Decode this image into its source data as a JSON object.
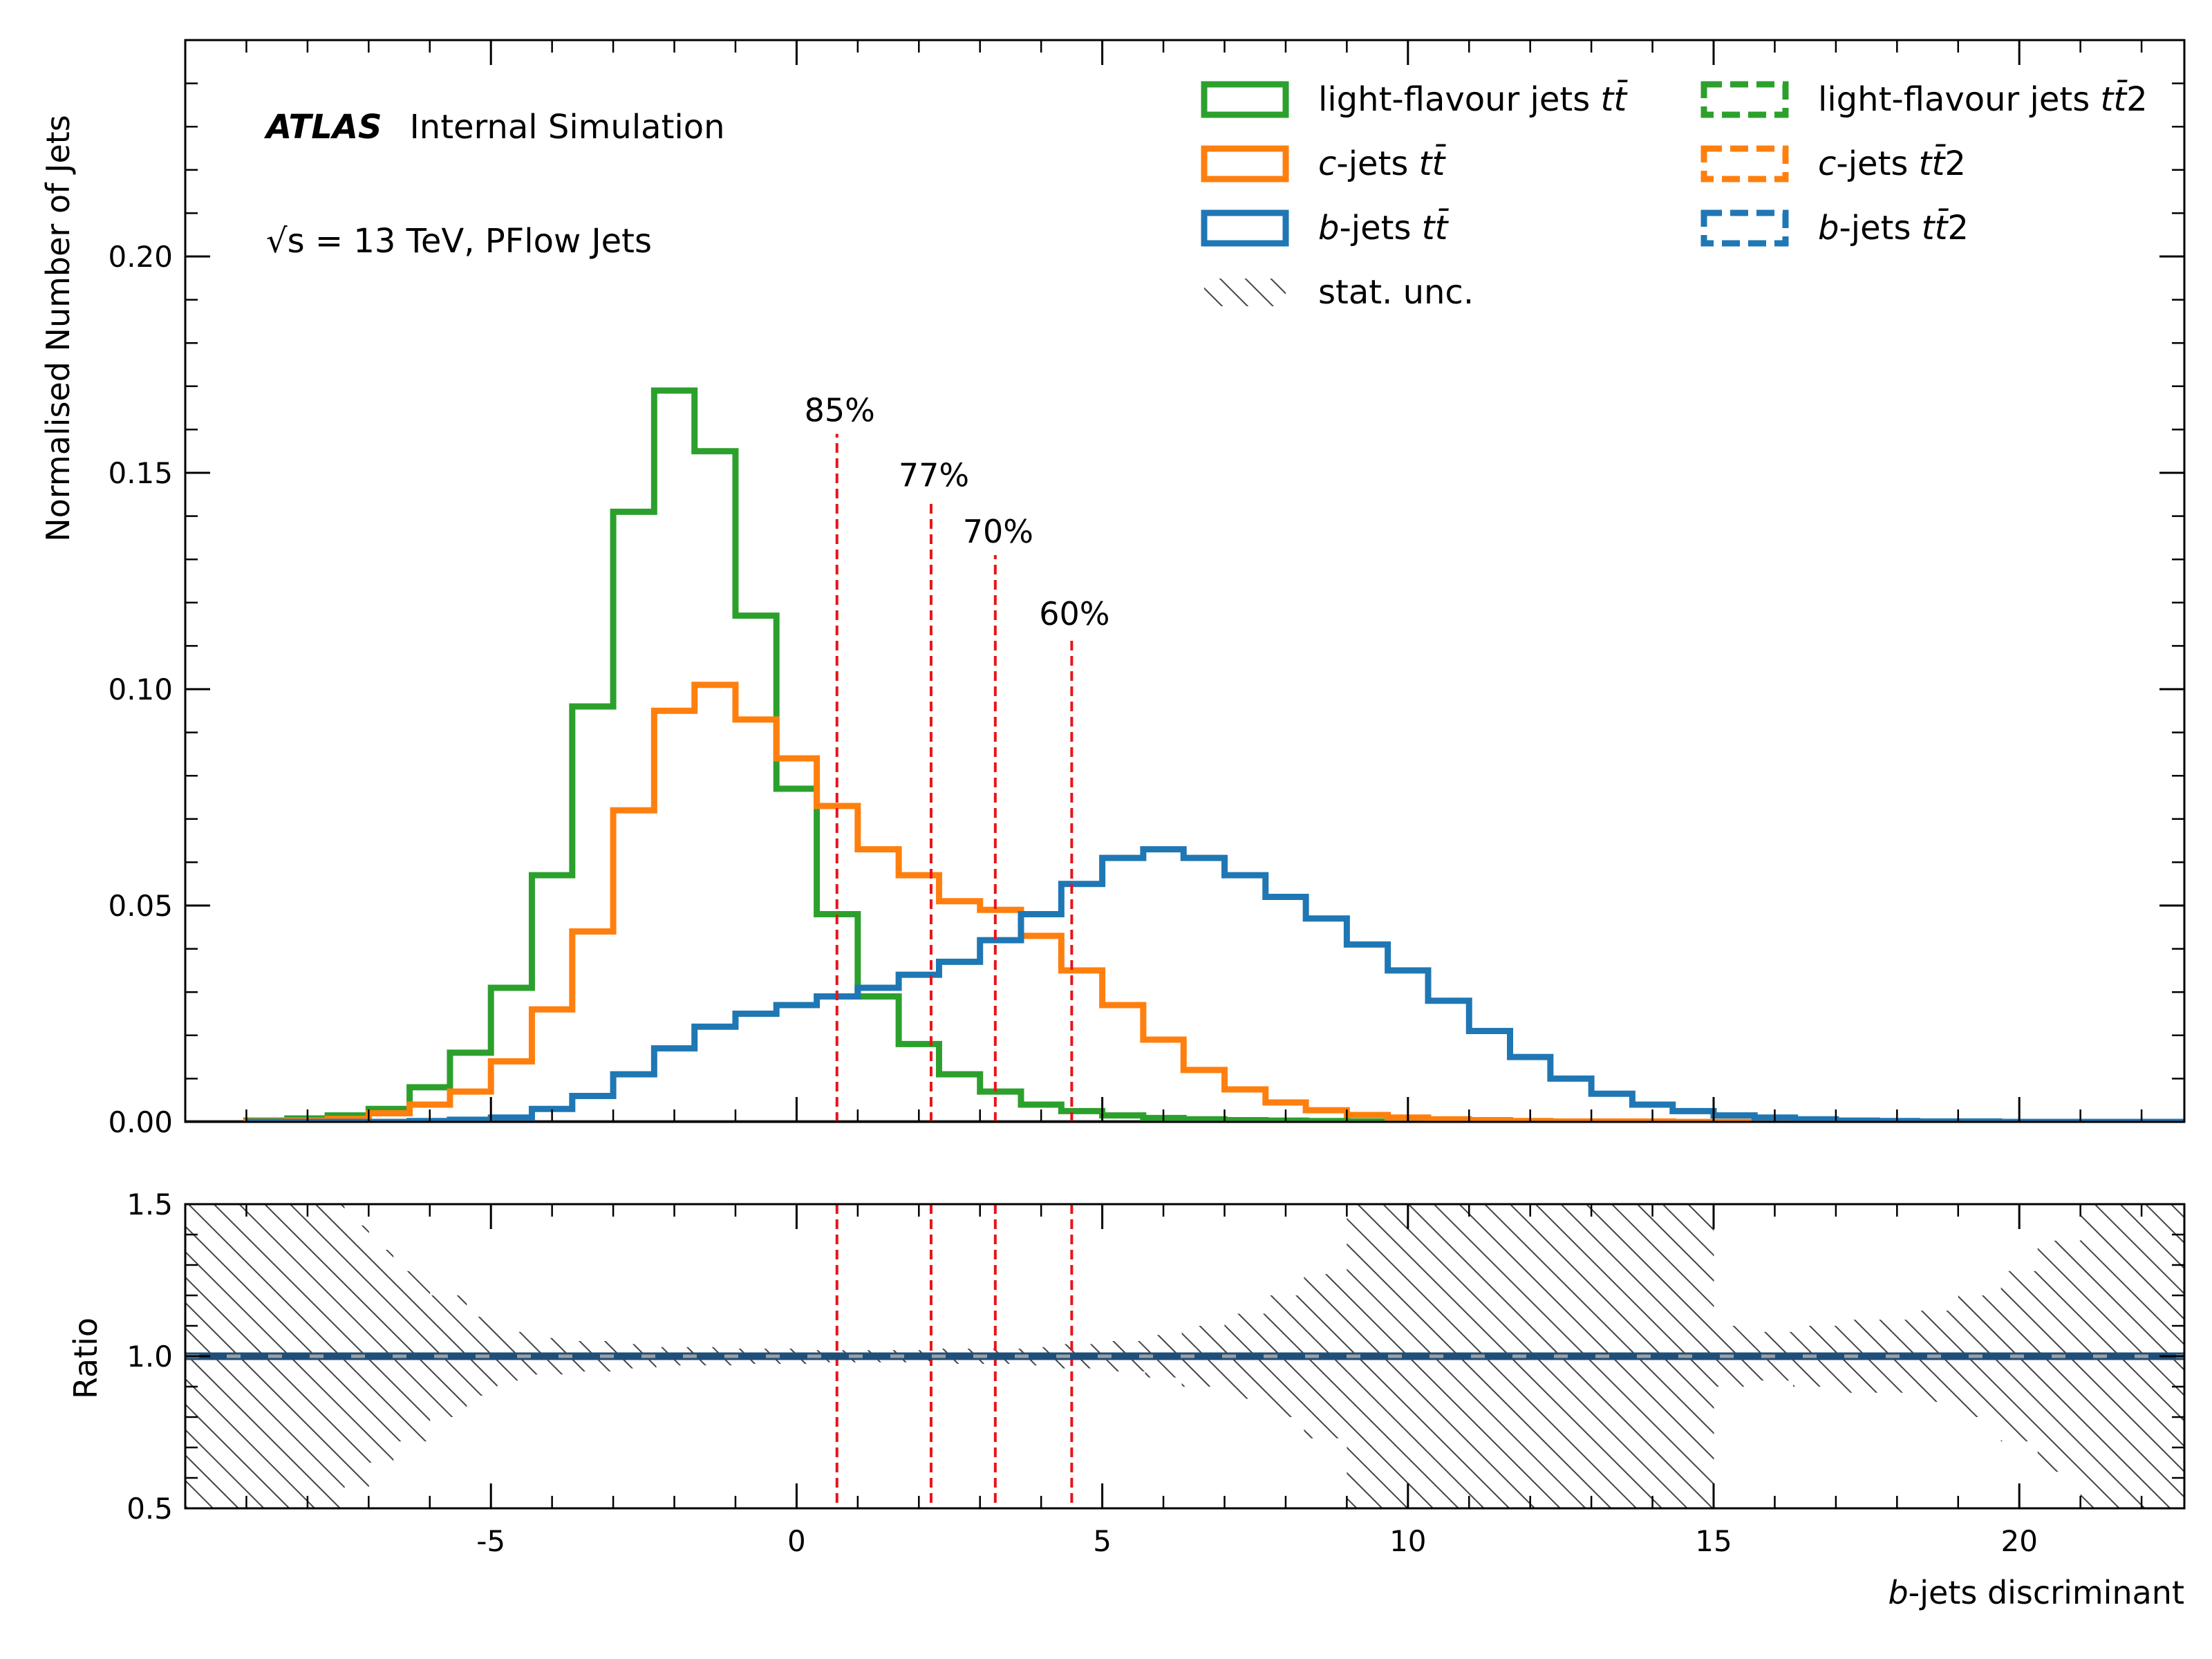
{
  "chart_data": {
    "type": "step-histogram",
    "top": {
      "ylabel": "Normalised Number of Jets",
      "ylim": [
        0,
        0.25
      ],
      "yticks": [
        0.0,
        0.05,
        0.1,
        0.15,
        0.2
      ],
      "ytick_labels": [
        "0.00",
        "0.05",
        "0.10",
        "0.15",
        "0.20"
      ]
    },
    "bottom": {
      "ylabel": "Ratio",
      "ylim": [
        0.5,
        1.5
      ],
      "yticks": [
        0.5,
        1.0,
        1.5
      ],
      "ytick_labels": [
        "0.5",
        "1.0",
        "1.5"
      ]
    },
    "xlabel_italic": "b",
    "xlabel_rest": "-jets discriminant",
    "xlim": [
      -10,
      22.7
    ],
    "xticks": [
      -5,
      0,
      5,
      10,
      15,
      20
    ],
    "xtick_labels": [
      "-5",
      "0",
      "5",
      "10",
      "15",
      "20"
    ],
    "bin_edges": [
      -9.0,
      -8.33,
      -7.67,
      -7.0,
      -6.33,
      -5.67,
      -5.0,
      -4.33,
      -3.67,
      -3.0,
      -2.33,
      -1.67,
      -1.0,
      -0.33,
      0.33,
      1.0,
      1.67,
      2.33,
      3.0,
      3.67,
      4.33,
      5.0,
      5.67,
      6.33,
      7.0,
      7.67,
      8.33,
      9.0,
      9.67,
      10.33,
      11.0,
      11.67,
      12.33,
      13.0,
      13.67,
      14.33,
      15.0,
      15.67,
      16.33,
      17.0,
      17.67,
      18.33,
      19.0,
      19.67,
      20.33,
      21.0,
      21.67,
      22.7
    ],
    "series": [
      {
        "key": "light",
        "color": "#2ca02c",
        "values": [
          0.0003,
          0.0008,
          0.0015,
          0.003,
          0.008,
          0.016,
          0.031,
          0.057,
          0.096,
          0.141,
          0.169,
          0.155,
          0.117,
          0.077,
          0.048,
          0.029,
          0.018,
          0.011,
          0.007,
          0.004,
          0.0025,
          0.0015,
          0.0009,
          0.0006,
          0.0004,
          0.0003,
          0.0002,
          0.0001,
          0.0001,
          0.0001,
          0.0,
          0.0,
          0.0,
          0.0,
          0.0,
          0.0,
          0.0,
          0.0,
          0.0,
          0.0,
          0.0,
          0.0,
          0.0,
          0.0,
          0.0,
          0.0,
          0.0
        ]
      },
      {
        "key": "c",
        "color": "#ff7f0e",
        "values": [
          0.0001,
          0.0003,
          0.0007,
          0.002,
          0.004,
          0.007,
          0.014,
          0.026,
          0.044,
          0.072,
          0.095,
          0.101,
          0.093,
          0.084,
          0.073,
          0.063,
          0.057,
          0.051,
          0.049,
          0.043,
          0.035,
          0.027,
          0.019,
          0.012,
          0.0075,
          0.0045,
          0.0027,
          0.0016,
          0.001,
          0.0006,
          0.0004,
          0.0002,
          0.0001,
          0.0001,
          0.0001,
          0.0,
          0.0,
          0.0,
          0.0,
          0.0,
          0.0,
          0.0,
          0.0,
          0.0,
          0.0,
          0.0,
          0.0
        ]
      },
      {
        "key": "b",
        "color": "#1f77b4",
        "values": [
          0.0,
          0.0,
          0.0,
          0.0,
          0.0002,
          0.0005,
          0.001,
          0.003,
          0.006,
          0.011,
          0.017,
          0.022,
          0.025,
          0.027,
          0.029,
          0.031,
          0.034,
          0.037,
          0.042,
          0.048,
          0.055,
          0.061,
          0.063,
          0.061,
          0.057,
          0.052,
          0.047,
          0.041,
          0.035,
          0.028,
          0.021,
          0.015,
          0.01,
          0.0065,
          0.004,
          0.0025,
          0.0015,
          0.001,
          0.0006,
          0.0003,
          0.0002,
          0.0001,
          0.0001,
          0.0,
          0.0,
          0.0,
          0.0
        ]
      }
    ],
    "uncertainty_band": {
      "x_edges": [
        -10,
        -7.4,
        -7.0,
        -6.6,
        -6.0,
        -5.4,
        -4.9,
        -4.3,
        -3.7,
        -3.0,
        -2.3,
        -1.6,
        -1.0,
        -0.3,
        0.3,
        1.0,
        1.7,
        2.3,
        3.0,
        3.7,
        4.3,
        5.0,
        5.7,
        6.3,
        7.0,
        7.7,
        8.3,
        9.0,
        9.7,
        10.3,
        11.0,
        11.7,
        12.3,
        13.0,
        13.7,
        14.3,
        15.0,
        15.7,
        16.3,
        17.0,
        17.7,
        18.3,
        19.0,
        19.7,
        20.3,
        21.0,
        21.7,
        22.7
      ],
      "half_width": [
        0.5,
        0.43,
        0.35,
        0.28,
        0.2,
        0.13,
        0.08,
        0.06,
        0.05,
        0.04,
        0.03,
        0.03,
        0.025,
        0.025,
        0.02,
        0.02,
        0.02,
        0.025,
        0.025,
        0.03,
        0.04,
        0.05,
        0.07,
        0.1,
        0.14,
        0.2,
        0.27,
        0.5,
        0.5,
        0.5,
        0.5,
        0.5,
        0.5,
        0.5,
        0.5,
        0.5,
        0.1,
        0.08,
        0.1,
        0.12,
        0.12,
        0.15,
        0.2,
        0.28,
        0.38,
        0.5,
        0.5
      ]
    },
    "ratio_lines": [
      {
        "color": "#1f4e79",
        "dash": "none"
      },
      {
        "color": "#9e9e9e",
        "dash": "dashed"
      }
    ],
    "working_points": [
      {
        "x": 0.66,
        "label": "85%",
        "ymax": 0.159
      },
      {
        "x": 2.2,
        "label": "77%",
        "ymax": 0.144
      },
      {
        "x": 3.25,
        "label": "70%",
        "ymax": 0.131
      },
      {
        "x": 4.5,
        "label": "60%",
        "ymax": 0.112
      }
    ],
    "wp_color": "#e8141a",
    "legend": {
      "placement": "top-right",
      "entries": [
        {
          "key": "light-solid",
          "prefix": "",
          "italic": "",
          "mid": "light-flavour jets ",
          "suffix": "",
          "color": "#2ca02c",
          "style": "solid"
        },
        {
          "key": "c-solid",
          "prefix": "",
          "italic": "c",
          "mid": "-jets ",
          "suffix": "",
          "color": "#ff7f0e",
          "style": "solid"
        },
        {
          "key": "b-solid",
          "prefix": "",
          "italic": "b",
          "mid": "-jets ",
          "suffix": "",
          "color": "#1f77b4",
          "style": "solid"
        },
        {
          "key": "stat",
          "prefix": "stat. unc.",
          "italic": "",
          "mid": "",
          "suffix": "",
          "color": "#555555",
          "style": "hatch"
        },
        {
          "key": "light-dash",
          "prefix": "",
          "italic": "",
          "mid": "light-flavour jets ",
          "suffix": "2",
          "color": "#2ca02c",
          "style": "dashed"
        },
        {
          "key": "c-dash",
          "prefix": "",
          "italic": "c",
          "mid": "-jets ",
          "suffix": "2",
          "color": "#ff7f0e",
          "style": "dashed"
        },
        {
          "key": "b-dash",
          "prefix": "",
          "italic": "b",
          "mid": "-jets ",
          "suffix": "2",
          "color": "#1f77b4",
          "style": "dashed"
        }
      ],
      "sample_symbol": "tt̄"
    },
    "annotations": {
      "experiment": "ATLAS",
      "status": "Internal Simulation",
      "energy_line": "√s = 13 TeV, PFlow Jets"
    }
  }
}
